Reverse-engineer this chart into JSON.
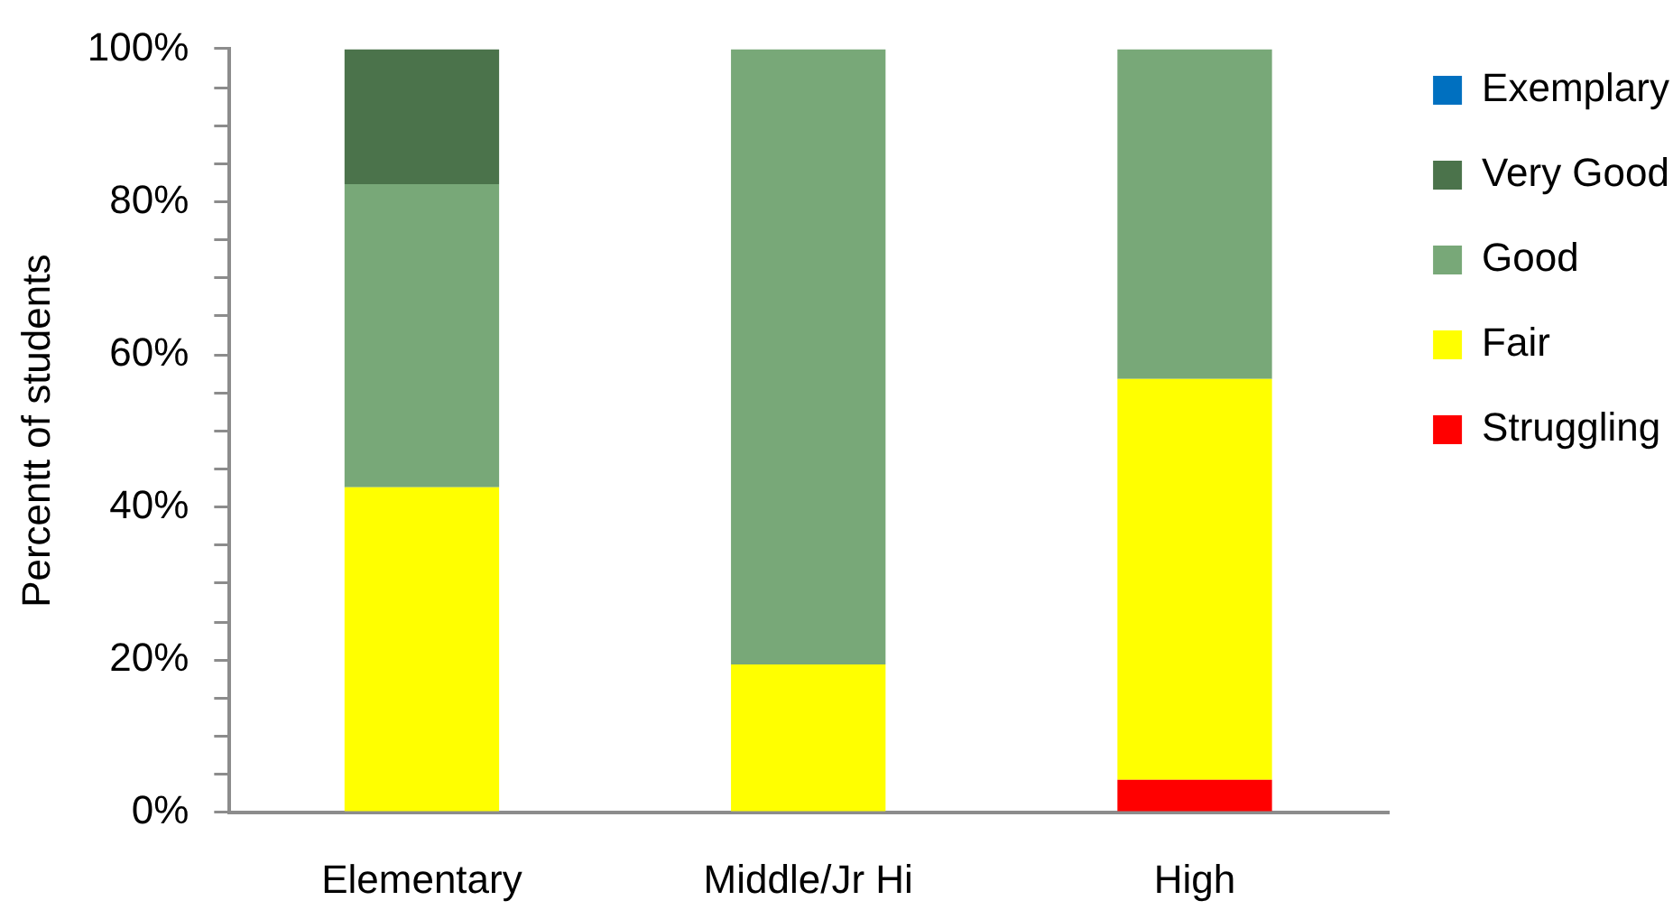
{
  "chart_data": {
    "type": "bar",
    "stacked": true,
    "ylabel": "Percentt of students",
    "categories": [
      "Elementary",
      "Middle/Jr Hi",
      "High"
    ],
    "series": [
      {
        "name": "Struggling",
        "color": "#ff0000",
        "values": [
          0,
          0,
          4.3
        ]
      },
      {
        "name": "Fair",
        "color": "#ffff00",
        "values": [
          42.6,
          19.4,
          52.5
        ]
      },
      {
        "name": "Good",
        "color": "#78a878",
        "values": [
          39.7,
          80.6,
          43.2
        ]
      },
      {
        "name": "Very Good",
        "color": "#4b734b",
        "values": [
          17.7,
          0,
          0
        ]
      },
      {
        "name": "Exemplary",
        "color": "#0070c0",
        "values": [
          0,
          0,
          0
        ]
      }
    ],
    "ylim": [
      0,
      100
    ],
    "yticks": [
      {
        "value": 0,
        "label": "0%"
      },
      {
        "value": 5,
        "label": null
      },
      {
        "value": 10,
        "label": null
      },
      {
        "value": 15,
        "label": null
      },
      {
        "value": 20,
        "label": "20%"
      },
      {
        "value": 25,
        "label": null
      },
      {
        "value": 30,
        "label": null
      },
      {
        "value": 35,
        "label": null
      },
      {
        "value": 40,
        "label": "40%"
      },
      {
        "value": 45,
        "label": null
      },
      {
        "value": 50,
        "label": null
      },
      {
        "value": 55,
        "label": null
      },
      {
        "value": 60,
        "label": "60%"
      },
      {
        "value": 65,
        "label": null
      },
      {
        "value": 70,
        "label": null
      },
      {
        "value": 75,
        "label": null
      },
      {
        "value": 80,
        "label": "80%"
      },
      {
        "value": 85,
        "label": null
      },
      {
        "value": 90,
        "label": null
      },
      {
        "value": 95,
        "label": null
      },
      {
        "value": 100,
        "label": "100%"
      }
    ],
    "legend": "right"
  }
}
